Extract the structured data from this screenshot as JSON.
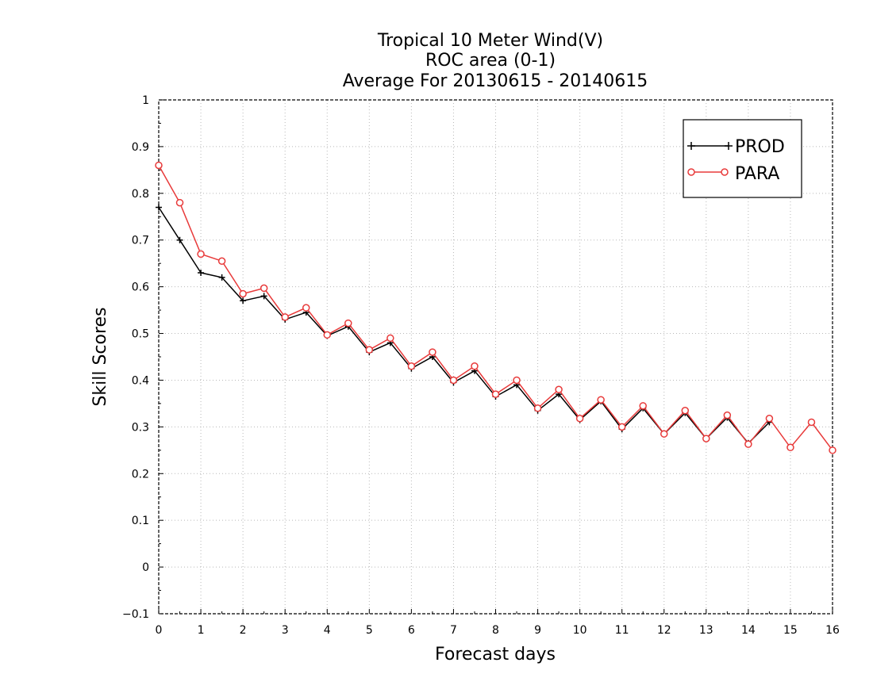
{
  "chart_data": {
    "type": "line",
    "title": [
      "Tropical 10 Meter Wind(V)",
      "ROC area (0-1)",
      "Average For 20130615 - 20140615"
    ],
    "xlabel": "Forecast days",
    "ylabel": "Skill Scores",
    "xlim": [
      0,
      16
    ],
    "ylim": [
      -0.1,
      1
    ],
    "x_ticks": [
      "0",
      "1",
      "2",
      "3",
      "4",
      "5",
      "6",
      "7",
      "8",
      "9",
      "10",
      "11",
      "12",
      "13",
      "14",
      "15",
      "16"
    ],
    "y_ticks": [
      "−0.1",
      "0",
      "0.1",
      "0.2",
      "0.3",
      "0.4",
      "0.5",
      "0.6",
      "0.7",
      "0.8",
      "0.9",
      "1"
    ],
    "grid": true,
    "legend_position": "top-right",
    "series": [
      {
        "name": "PROD",
        "color": "#000000",
        "marker": "plus",
        "x": [
          0,
          0.5,
          1,
          1.5,
          2,
          2.5,
          3,
          3.5,
          4,
          4.5,
          5,
          5.5,
          6,
          6.5,
          7,
          7.5,
          8,
          8.5,
          9,
          9.5,
          10,
          10.5,
          11,
          11.5,
          12,
          12.5,
          13,
          13.5,
          14,
          14.5
        ],
        "values": [
          0.77,
          0.7,
          0.63,
          0.62,
          0.57,
          0.58,
          0.53,
          0.545,
          0.495,
          0.515,
          0.46,
          0.48,
          0.425,
          0.45,
          0.395,
          0.42,
          0.365,
          0.39,
          0.335,
          0.37,
          0.315,
          0.355,
          0.295,
          0.34,
          0.285,
          0.33,
          0.275,
          0.32,
          0.265,
          0.31
        ]
      },
      {
        "name": "PARA",
        "color": "#e83a3a",
        "marker": "circle",
        "x": [
          0,
          0.5,
          1,
          1.5,
          2,
          2.5,
          3,
          3.5,
          4,
          4.5,
          5,
          5.5,
          6,
          6.5,
          7,
          7.5,
          8,
          8.5,
          9,
          9.5,
          10,
          10.5,
          11,
          11.5,
          12,
          12.5,
          13,
          13.5,
          14,
          14.5,
          15,
          15.5,
          16
        ],
        "values": [
          0.86,
          0.78,
          0.67,
          0.655,
          0.585,
          0.597,
          0.535,
          0.555,
          0.497,
          0.522,
          0.465,
          0.49,
          0.43,
          0.46,
          0.4,
          0.43,
          0.37,
          0.4,
          0.34,
          0.38,
          0.318,
          0.358,
          0.3,
          0.345,
          0.285,
          0.335,
          0.275,
          0.325,
          0.263,
          0.318,
          0.256,
          0.31,
          0.25
        ]
      }
    ]
  }
}
